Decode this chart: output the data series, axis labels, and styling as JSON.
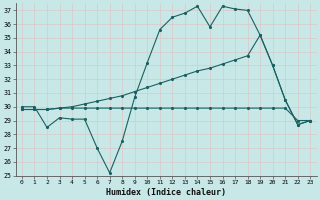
{
  "xlabel": "Humidex (Indice chaleur)",
  "bg_color": "#c8e8e8",
  "line_color": "#1a6060",
  "grid_color": "#b0d8d8",
  "xlim": [
    -0.5,
    23.5
  ],
  "ylim": [
    25,
    37.5
  ],
  "yticks": [
    25,
    26,
    27,
    28,
    29,
    30,
    31,
    32,
    33,
    34,
    35,
    36,
    37
  ],
  "xticks": [
    0,
    1,
    2,
    3,
    4,
    5,
    6,
    7,
    8,
    9,
    10,
    11,
    12,
    13,
    14,
    15,
    16,
    17,
    18,
    19,
    20,
    21,
    22,
    23
  ],
  "line1_x": [
    0,
    1,
    2,
    3,
    4,
    5,
    6,
    7,
    8,
    9,
    10,
    11,
    12,
    13,
    14,
    15,
    16,
    17,
    18,
    19,
    20,
    21,
    22,
    23
  ],
  "line1_y": [
    30.0,
    30.0,
    28.5,
    29.2,
    29.1,
    29.1,
    27.0,
    25.2,
    27.5,
    30.7,
    33.2,
    35.6,
    36.5,
    36.8,
    37.3,
    35.8,
    37.3,
    37.1,
    37.0,
    35.2,
    33.0,
    30.5,
    28.7,
    29.0
  ],
  "line2_x": [
    0,
    1,
    2,
    3,
    4,
    5,
    6,
    7,
    8,
    9,
    10,
    11,
    12,
    13,
    14,
    15,
    16,
    17,
    18,
    19,
    20,
    21,
    22,
    23
  ],
  "line2_y": [
    29.8,
    29.8,
    29.8,
    29.9,
    30.0,
    30.2,
    30.4,
    30.6,
    30.8,
    31.1,
    31.4,
    31.7,
    32.0,
    32.3,
    32.6,
    32.8,
    33.1,
    33.4,
    33.7,
    35.2,
    33.0,
    30.5,
    28.7,
    29.0
  ],
  "line3_x": [
    0,
    1,
    2,
    3,
    4,
    5,
    6,
    7,
    8,
    9,
    10,
    11,
    12,
    13,
    14,
    15,
    16,
    17,
    18,
    19,
    20,
    21,
    22,
    23
  ],
  "line3_y": [
    29.8,
    29.8,
    29.8,
    29.9,
    29.9,
    29.9,
    29.9,
    29.9,
    29.9,
    29.9,
    29.9,
    29.9,
    29.9,
    29.9,
    29.9,
    29.9,
    29.9,
    29.9,
    29.9,
    29.9,
    29.9,
    29.9,
    29.0,
    29.0
  ]
}
